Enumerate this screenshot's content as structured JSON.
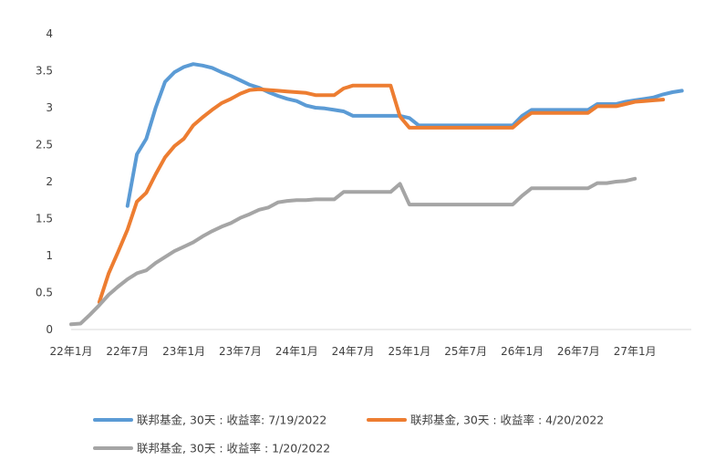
{
  "chart_data": {
    "type": "line",
    "title": "",
    "xlabel": "",
    "ylabel": "",
    "ylim": [
      0,
      4
    ],
    "xlim": [
      "2022-01",
      "2027-07"
    ],
    "yticks": [
      "0",
      "0.5",
      "1",
      "1.5",
      "2",
      "2.5",
      "3",
      "3.5",
      "4"
    ],
    "xticks": [
      "22年1月",
      "22年7月",
      "23年1月",
      "23年7月",
      "24年1月",
      "24年7月",
      "25年1月",
      "25年7月",
      "26年1月",
      "26年7月",
      "27年1月"
    ],
    "grid": false,
    "legend_position": "bottom",
    "series": [
      {
        "name": "联邦基金, 30天 : 收益率: 7/19/2022",
        "color": "#5B9BD5",
        "points": [
          [
            "2022-07",
            1.67
          ],
          [
            "2022-08",
            2.37
          ],
          [
            "2022-09",
            2.58
          ],
          [
            "2022-10",
            3.0
          ],
          [
            "2022-11",
            3.35
          ],
          [
            "2022-12",
            3.48
          ],
          [
            "2023-01",
            3.55
          ],
          [
            "2023-02",
            3.59
          ],
          [
            "2023-03",
            3.57
          ],
          [
            "2023-04",
            3.54
          ],
          [
            "2023-05",
            3.48
          ],
          [
            "2023-06",
            3.43
          ],
          [
            "2023-07",
            3.37
          ],
          [
            "2023-08",
            3.31
          ],
          [
            "2023-09",
            3.27
          ],
          [
            "2023-10",
            3.21
          ],
          [
            "2023-11",
            3.16
          ],
          [
            "2023-12",
            3.12
          ],
          [
            "2024-01",
            3.09
          ],
          [
            "2024-02",
            3.03
          ],
          [
            "2024-03",
            3.0
          ],
          [
            "2024-04",
            2.99
          ],
          [
            "2024-05",
            2.97
          ],
          [
            "2024-06",
            2.95
          ],
          [
            "2024-07",
            2.89
          ],
          [
            "2024-08",
            2.89
          ],
          [
            "2024-09",
            2.89
          ],
          [
            "2024-10",
            2.89
          ],
          [
            "2024-11",
            2.89
          ],
          [
            "2024-12",
            2.89
          ],
          [
            "2025-01",
            2.86
          ],
          [
            "2025-02",
            2.76
          ],
          [
            "2025-03",
            2.76
          ],
          [
            "2025-04",
            2.76
          ],
          [
            "2025-05",
            2.76
          ],
          [
            "2025-06",
            2.76
          ],
          [
            "2025-07",
            2.76
          ],
          [
            "2025-08",
            2.76
          ],
          [
            "2025-09",
            2.76
          ],
          [
            "2025-10",
            2.76
          ],
          [
            "2025-11",
            2.76
          ],
          [
            "2025-12",
            2.76
          ],
          [
            "2026-01",
            2.89
          ],
          [
            "2026-02",
            2.97
          ],
          [
            "2026-03",
            2.97
          ],
          [
            "2026-04",
            2.97
          ],
          [
            "2026-05",
            2.97
          ],
          [
            "2026-06",
            2.97
          ],
          [
            "2026-07",
            2.97
          ],
          [
            "2026-08",
            2.97
          ],
          [
            "2026-09",
            3.05
          ],
          [
            "2026-10",
            3.05
          ],
          [
            "2026-11",
            3.05
          ],
          [
            "2026-12",
            3.08
          ],
          [
            "2027-01",
            3.1
          ],
          [
            "2027-02",
            3.12
          ],
          [
            "2027-03",
            3.14
          ],
          [
            "2027-04",
            3.18
          ],
          [
            "2027-05",
            3.21
          ],
          [
            "2027-06",
            3.23
          ]
        ]
      },
      {
        "name": "联邦基金, 30天 : 收益率 : 4/20/2022",
        "color": "#ED7D31",
        "points": [
          [
            "2022-04",
            0.37
          ],
          [
            "2022-05",
            0.76
          ],
          [
            "2022-06",
            1.05
          ],
          [
            "2022-07",
            1.35
          ],
          [
            "2022-08",
            1.73
          ],
          [
            "2022-09",
            1.85
          ],
          [
            "2022-10",
            2.1
          ],
          [
            "2022-11",
            2.33
          ],
          [
            "2022-12",
            2.48
          ],
          [
            "2023-01",
            2.58
          ],
          [
            "2023-02",
            2.76
          ],
          [
            "2023-03",
            2.87
          ],
          [
            "2023-04",
            2.97
          ],
          [
            "2023-05",
            3.06
          ],
          [
            "2023-06",
            3.12
          ],
          [
            "2023-07",
            3.19
          ],
          [
            "2023-08",
            3.24
          ],
          [
            "2023-09",
            3.25
          ],
          [
            "2023-10",
            3.24
          ],
          [
            "2023-11",
            3.23
          ],
          [
            "2023-12",
            3.22
          ],
          [
            "2024-01",
            3.21
          ],
          [
            "2024-02",
            3.2
          ],
          [
            "2024-03",
            3.17
          ],
          [
            "2024-04",
            3.17
          ],
          [
            "2024-05",
            3.17
          ],
          [
            "2024-06",
            3.26
          ],
          [
            "2024-07",
            3.3
          ],
          [
            "2024-08",
            3.3
          ],
          [
            "2024-09",
            3.3
          ],
          [
            "2024-10",
            3.3
          ],
          [
            "2024-11",
            3.3
          ],
          [
            "2024-12",
            2.88
          ],
          [
            "2025-01",
            2.73
          ],
          [
            "2025-02",
            2.73
          ],
          [
            "2025-03",
            2.73
          ],
          [
            "2025-04",
            2.73
          ],
          [
            "2025-05",
            2.73
          ],
          [
            "2025-06",
            2.73
          ],
          [
            "2025-07",
            2.73
          ],
          [
            "2025-08",
            2.73
          ],
          [
            "2025-09",
            2.73
          ],
          [
            "2025-10",
            2.73
          ],
          [
            "2025-11",
            2.73
          ],
          [
            "2025-12",
            2.73
          ],
          [
            "2026-01",
            2.84
          ],
          [
            "2026-02",
            2.93
          ],
          [
            "2026-03",
            2.93
          ],
          [
            "2026-04",
            2.93
          ],
          [
            "2026-05",
            2.93
          ],
          [
            "2026-06",
            2.93
          ],
          [
            "2026-07",
            2.93
          ],
          [
            "2026-08",
            2.93
          ],
          [
            "2026-09",
            3.02
          ],
          [
            "2026-10",
            3.02
          ],
          [
            "2026-11",
            3.02
          ],
          [
            "2026-12",
            3.05
          ],
          [
            "2027-01",
            3.08
          ],
          [
            "2027-02",
            3.09
          ],
          [
            "2027-03",
            3.1
          ],
          [
            "2027-04",
            3.11
          ]
        ]
      },
      {
        "name": "联邦基金, 30天 : 收益率 : 1/20/2022",
        "color": "#A5A5A5",
        "points": [
          [
            "2022-01",
            0.07
          ],
          [
            "2022-02",
            0.08
          ],
          [
            "2022-03",
            0.2
          ],
          [
            "2022-04",
            0.33
          ],
          [
            "2022-05",
            0.47
          ],
          [
            "2022-06",
            0.58
          ],
          [
            "2022-07",
            0.68
          ],
          [
            "2022-08",
            0.76
          ],
          [
            "2022-09",
            0.8
          ],
          [
            "2022-10",
            0.9
          ],
          [
            "2022-11",
            0.98
          ],
          [
            "2022-12",
            1.06
          ],
          [
            "2023-01",
            1.12
          ],
          [
            "2023-02",
            1.18
          ],
          [
            "2023-03",
            1.26
          ],
          [
            "2023-04",
            1.33
          ],
          [
            "2023-05",
            1.39
          ],
          [
            "2023-06",
            1.44
          ],
          [
            "2023-07",
            1.51
          ],
          [
            "2023-08",
            1.56
          ],
          [
            "2023-09",
            1.62
          ],
          [
            "2023-10",
            1.65
          ],
          [
            "2023-11",
            1.72
          ],
          [
            "2023-12",
            1.74
          ],
          [
            "2024-01",
            1.75
          ],
          [
            "2024-02",
            1.75
          ],
          [
            "2024-03",
            1.76
          ],
          [
            "2024-04",
            1.76
          ],
          [
            "2024-05",
            1.76
          ],
          [
            "2024-06",
            1.86
          ],
          [
            "2024-07",
            1.86
          ],
          [
            "2024-08",
            1.86
          ],
          [
            "2024-09",
            1.86
          ],
          [
            "2024-10",
            1.86
          ],
          [
            "2024-11",
            1.86
          ],
          [
            "2024-12",
            1.97
          ],
          [
            "2025-01",
            1.69
          ],
          [
            "2025-02",
            1.69
          ],
          [
            "2025-03",
            1.69
          ],
          [
            "2025-04",
            1.69
          ],
          [
            "2025-05",
            1.69
          ],
          [
            "2025-06",
            1.69
          ],
          [
            "2025-07",
            1.69
          ],
          [
            "2025-08",
            1.69
          ],
          [
            "2025-09",
            1.69
          ],
          [
            "2025-10",
            1.69
          ],
          [
            "2025-11",
            1.69
          ],
          [
            "2025-12",
            1.69
          ],
          [
            "2026-01",
            1.81
          ],
          [
            "2026-02",
            1.91
          ],
          [
            "2026-03",
            1.91
          ],
          [
            "2026-04",
            1.91
          ],
          [
            "2026-05",
            1.91
          ],
          [
            "2026-06",
            1.91
          ],
          [
            "2026-07",
            1.91
          ],
          [
            "2026-08",
            1.91
          ],
          [
            "2026-09",
            1.98
          ],
          [
            "2026-10",
            1.98
          ],
          [
            "2026-11",
            2.0
          ],
          [
            "2026-12",
            2.01
          ],
          [
            "2027-01",
            2.04
          ]
        ]
      }
    ]
  }
}
